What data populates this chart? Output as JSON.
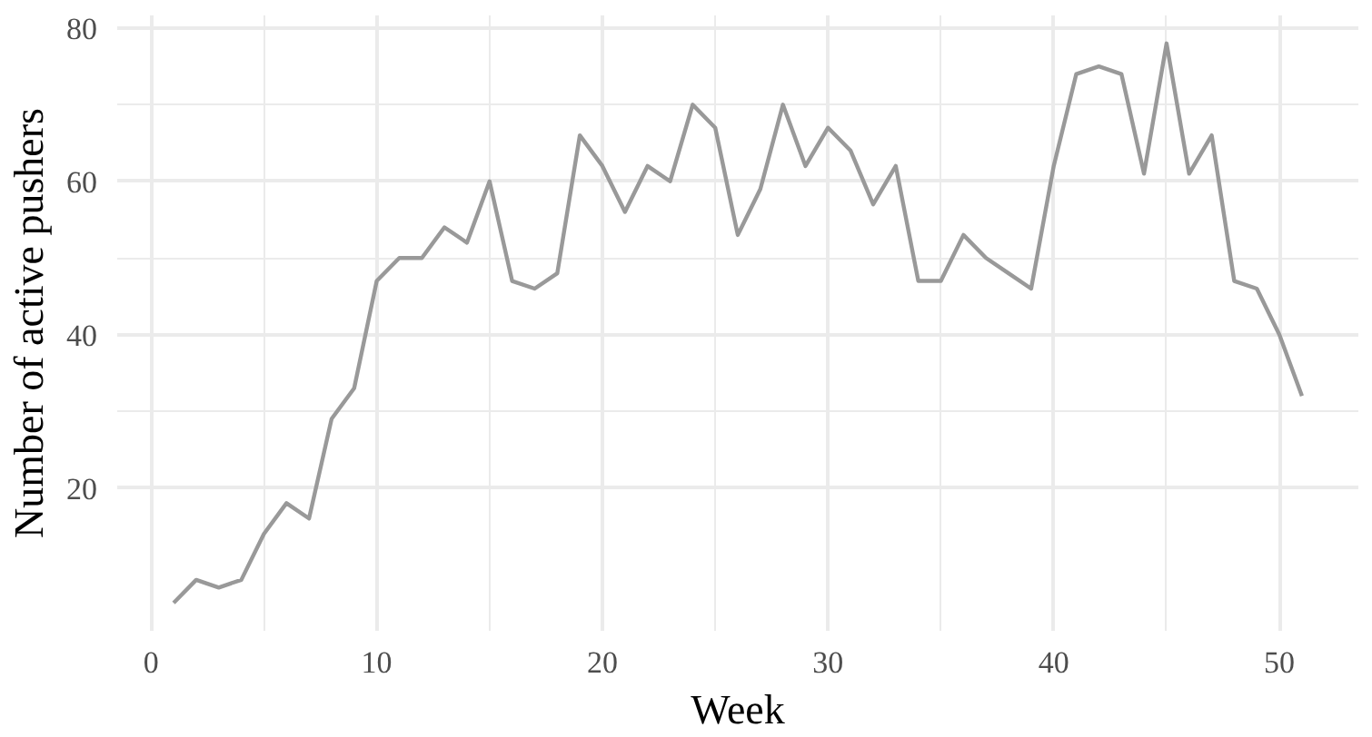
{
  "chart_data": {
    "type": "line",
    "xlabel": "Week",
    "ylabel": "Number of active pushers",
    "x": [
      1,
      2,
      3,
      4,
      5,
      6,
      7,
      8,
      9,
      10,
      11,
      12,
      13,
      14,
      15,
      16,
      17,
      18,
      19,
      20,
      21,
      22,
      23,
      24,
      25,
      26,
      27,
      28,
      29,
      30,
      31,
      32,
      33,
      34,
      35,
      36,
      37,
      38,
      39,
      40,
      41,
      42,
      43,
      44,
      45,
      46,
      47,
      48,
      49,
      50,
      51
    ],
    "series": [
      {
        "color": "#999999",
        "values": [
          5,
          8,
          7,
          8,
          14,
          18,
          16,
          29,
          33,
          47,
          50,
          50,
          54,
          52,
          60,
          47,
          46,
          48,
          66,
          62,
          56,
          62,
          60,
          70,
          67,
          53,
          59,
          70,
          62,
          67,
          64,
          57,
          62,
          47,
          47,
          53,
          50,
          48,
          46,
          62,
          74,
          75,
          74,
          61,
          78,
          61,
          66,
          47,
          46,
          40,
          32
        ]
      }
    ],
    "xlim": [
      -1.5,
      53.5
    ],
    "ylim": [
      1.35,
      81.65
    ],
    "xticks": [
      0,
      10,
      20,
      30,
      40,
      50
    ],
    "yticks": [
      20,
      40,
      60,
      80
    ],
    "grid": true,
    "marker": "none",
    "line_style": "solid"
  }
}
